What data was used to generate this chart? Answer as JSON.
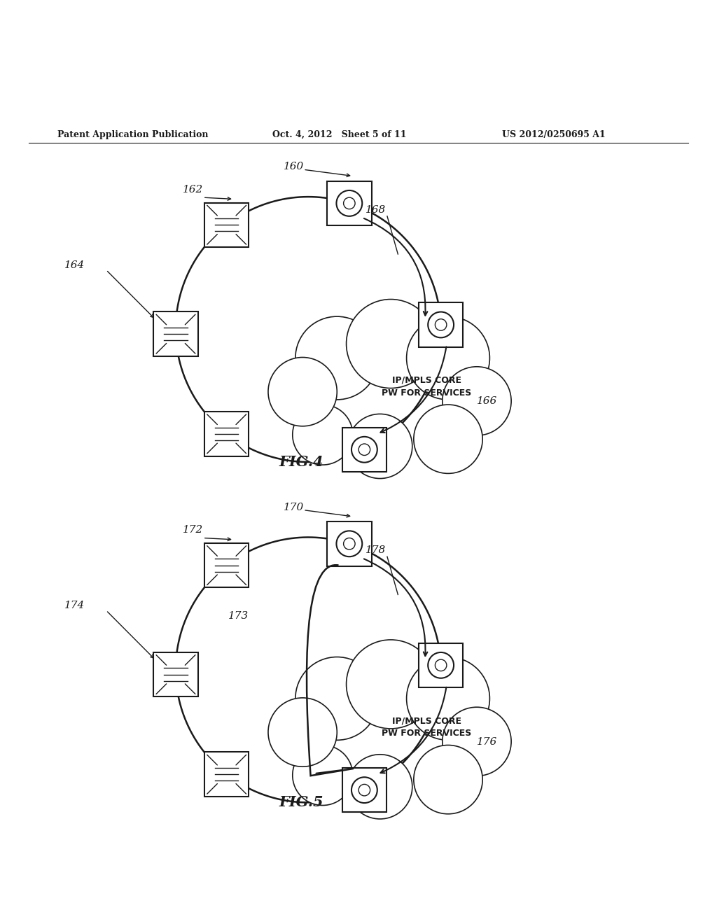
{
  "header_left": "Patent Application Publication",
  "header_mid": "Oct. 4, 2012   Sheet 5 of 11",
  "header_right": "US 2012/0250695 A1",
  "fig4_label": "FIG.4",
  "fig5_label": "FIG.5",
  "bg_color": "#ffffff",
  "line_color": "#1a1a1a",
  "text_color": "#1a1a1a"
}
